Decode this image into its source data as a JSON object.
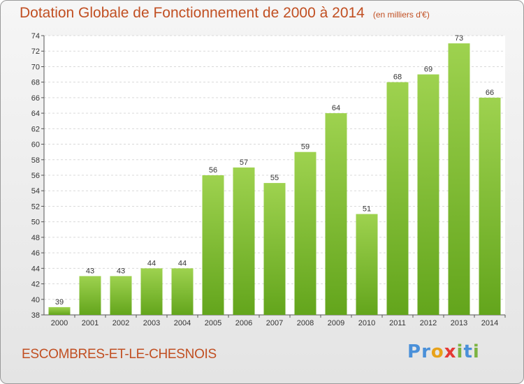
{
  "chart_data": {
    "type": "bar",
    "title": "Dotation Globale de Fonctionnement de 2000 à 2014",
    "unit": "(en milliers d'€)",
    "categories": [
      "2000",
      "2001",
      "2002",
      "2003",
      "2004",
      "2005",
      "2006",
      "2007",
      "2008",
      "2009",
      "2010",
      "2011",
      "2012",
      "2013",
      "2014"
    ],
    "values": [
      39,
      43,
      43,
      44,
      44,
      56,
      57,
      55,
      59,
      64,
      51,
      68,
      69,
      73,
      66
    ],
    "ylim": [
      38,
      74
    ],
    "yticks": [
      38,
      40,
      42,
      44,
      46,
      48,
      50,
      52,
      54,
      56,
      58,
      60,
      62,
      64,
      66,
      68,
      70,
      72,
      74
    ],
    "grid": true,
    "xlabel": "",
    "ylabel": "",
    "bar_color": "#8cc63f"
  },
  "commune": "ESCOMBRES-ET-LE-CHESNOIS",
  "logo": {
    "letters": [
      {
        "ch": "P",
        "color": "#4a90d9"
      },
      {
        "ch": "r",
        "color": "#4a90d9"
      },
      {
        "ch": "o",
        "color": "#e8a21a"
      },
      {
        "ch": "x",
        "color": "#e53935"
      },
      {
        "ch": "i",
        "color": "#7cb342"
      },
      {
        "ch": "t",
        "color": "#4a90d9"
      },
      {
        "ch": "i",
        "color": "#7cb342"
      }
    ]
  }
}
